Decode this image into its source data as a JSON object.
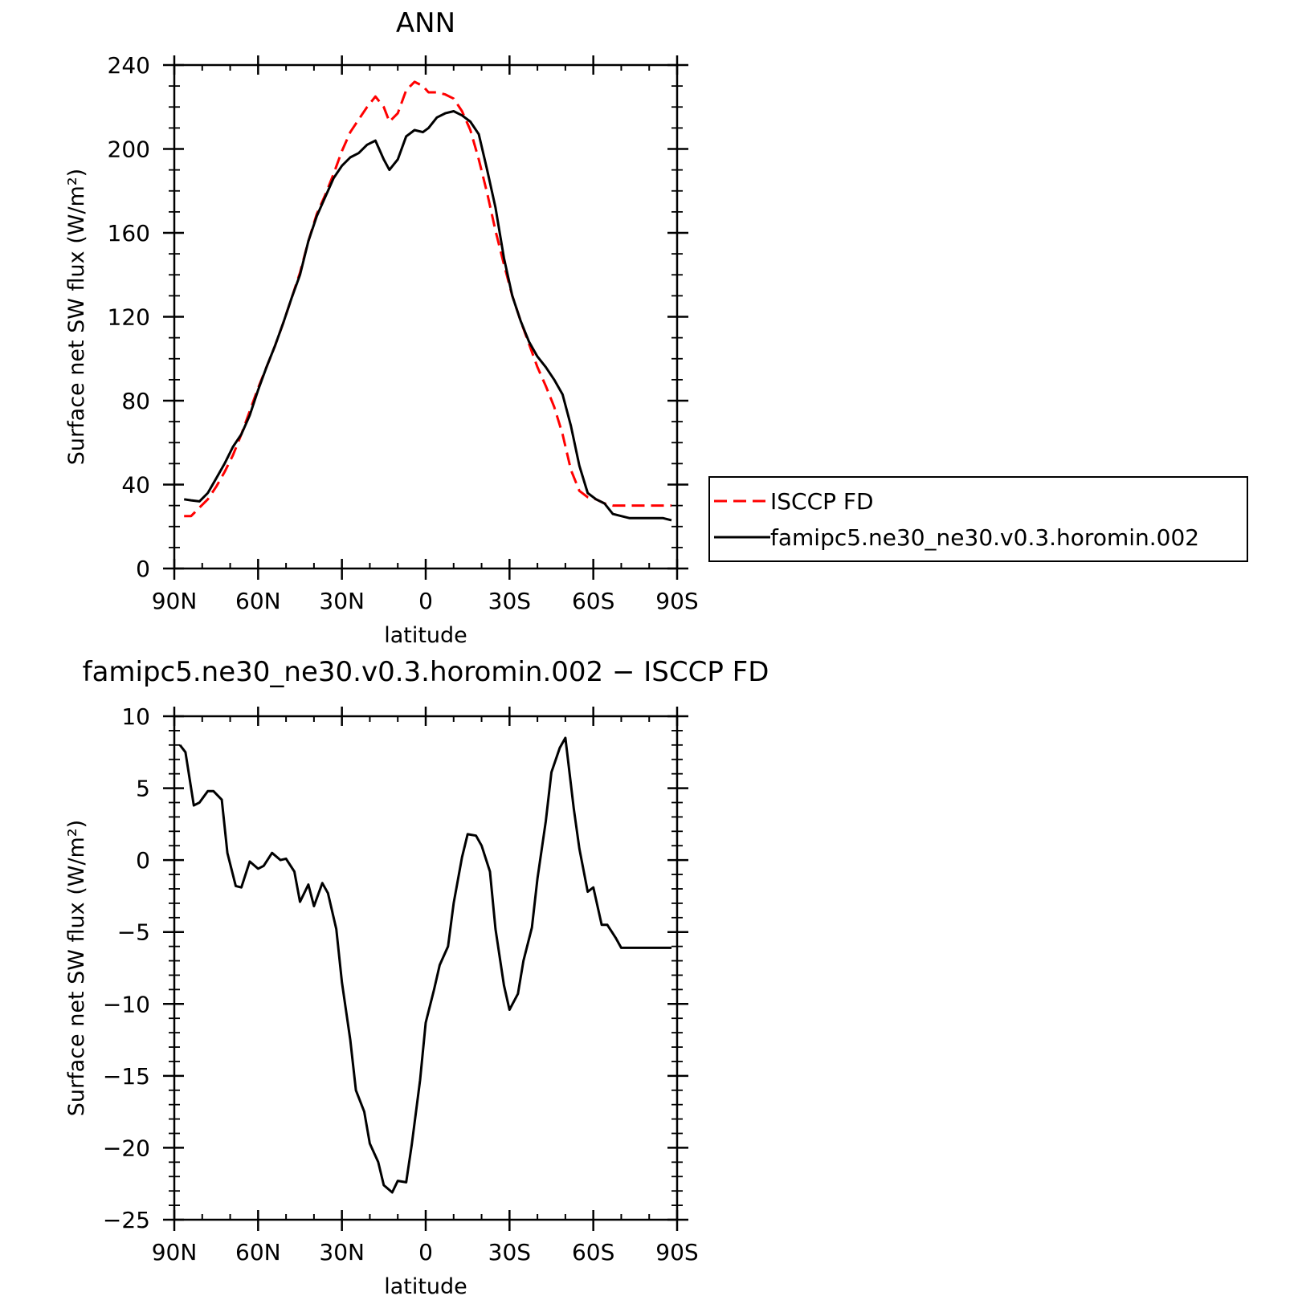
{
  "chart_data": [
    {
      "type": "line",
      "title": "ANN",
      "xlabel": "latitude",
      "ylabel": "Surface net SW flux (W/m²)",
      "xlim": [
        90,
        -90
      ],
      "ylim": [
        0,
        240
      ],
      "x_ticks": [
        90,
        60,
        30,
        0,
        -30,
        -60,
        -90
      ],
      "x_tick_labels": [
        "90N",
        "60N",
        "30N",
        "0",
        "30S",
        "60S",
        "90S"
      ],
      "y_ticks": [
        0,
        40,
        80,
        120,
        160,
        200,
        240
      ],
      "y_tick_labels": [
        "0",
        "40",
        "80",
        "120",
        "160",
        "200",
        "240"
      ],
      "legend": {
        "placement": "right"
      },
      "series": [
        {
          "name": "ISCCP FD",
          "color": "#ff0000",
          "dash": "dashed",
          "x": [
            86.5,
            84,
            81,
            78,
            75,
            72,
            69,
            66,
            63,
            60,
            57,
            54,
            51,
            48,
            45,
            42,
            39,
            36,
            33,
            30,
            27,
            24,
            21,
            18,
            15,
            13,
            10,
            7,
            4,
            1,
            -1,
            -4,
            -7,
            -10,
            -13,
            -16,
            -19,
            -22,
            -25,
            -28,
            -31,
            -34,
            -37,
            -40,
            -43,
            -46,
            -49,
            -52,
            -55,
            -58,
            -61,
            -64,
            -67,
            -70,
            -73,
            -76,
            -79,
            -82,
            -85,
            -88
          ],
          "y": [
            25,
            25,
            29,
            33,
            39,
            46,
            54,
            64,
            75,
            86,
            96,
            106,
            117,
            129,
            141,
            156,
            169,
            178,
            188,
            199,
            208,
            214,
            220,
            225,
            220,
            213,
            217,
            228,
            232,
            230,
            227,
            227,
            226,
            224,
            218,
            209,
            195,
            179,
            161,
            145,
            130,
            118,
            107,
            96,
            87,
            77,
            64,
            47,
            37,
            34,
            33,
            31,
            30,
            30,
            30,
            30,
            30,
            30,
            30,
            30
          ]
        },
        {
          "name": "famipc5.ne30_ne30.v0.3.horomin.002",
          "color": "#000000",
          "dash": "solid",
          "x": [
            86.5,
            84,
            81,
            78,
            75,
            72,
            69,
            66,
            63,
            60,
            57,
            54,
            51,
            48,
            45,
            42,
            39,
            36,
            33,
            30,
            27,
            24,
            21,
            18,
            15,
            13,
            10,
            7,
            4,
            1,
            -1,
            -4,
            -7,
            -10,
            -13,
            -16,
            -19,
            -22,
            -25,
            -28,
            -31,
            -34,
            -37,
            -40,
            -43,
            -46,
            -49,
            -52,
            -55,
            -58,
            -61,
            -64,
            -67,
            -70,
            -73,
            -76,
            -79,
            -82,
            -85,
            -88
          ],
          "y": [
            33,
            32.5,
            32,
            36,
            43,
            50,
            58,
            64,
            73,
            85,
            96,
            106,
            117,
            129,
            140,
            156,
            168,
            177,
            186,
            192,
            196,
            198,
            202,
            204,
            195,
            190,
            195,
            206,
            209,
            208,
            210,
            215,
            217,
            218,
            216,
            213,
            207,
            190,
            172,
            148,
            130,
            118,
            108,
            101,
            96,
            90,
            83,
            68,
            49,
            36,
            33,
            31,
            26,
            25,
            24,
            24,
            24,
            24,
            24,
            23
          ]
        }
      ]
    },
    {
      "type": "line",
      "title": "famipc5.ne30_ne30.v0.3.horomin.002 − ISCCP FD",
      "xlabel": "latitude",
      "ylabel": "Surface net SW flux (W/m²)",
      "xlim": [
        90,
        -90
      ],
      "ylim": [
        -25,
        10
      ],
      "x_ticks": [
        90,
        60,
        30,
        0,
        -30,
        -60,
        -90
      ],
      "x_tick_labels": [
        "90N",
        "60N",
        "30N",
        "0",
        "30S",
        "60S",
        "90S"
      ],
      "y_ticks": [
        10,
        5,
        0,
        -5,
        -10,
        -15,
        -20,
        -25
      ],
      "y_tick_labels": [
        "10",
        "5",
        "0",
        "−5",
        "−10",
        "−15",
        "−20",
        "−25"
      ],
      "series": [
        {
          "color": "#000000",
          "dash": "solid",
          "x": [
            88,
            86,
            83,
            81,
            78,
            76,
            73,
            71,
            68,
            66,
            63,
            60,
            58,
            55,
            52,
            50,
            47,
            45,
            42,
            40,
            37,
            35,
            32,
            30,
            27,
            25,
            22,
            20,
            17,
            15,
            12,
            10,
            7,
            5,
            2,
            0,
            -3,
            -5,
            -8,
            -10,
            -13,
            -15,
            -18,
            -20,
            -23,
            -25,
            -28,
            -30,
            -33,
            -35,
            -38,
            -40,
            -43,
            -45,
            -48,
            -50,
            -53,
            -55,
            -58,
            -60,
            -63,
            -65,
            -68,
            -70,
            -73,
            -75,
            -78,
            -80,
            -83,
            -85,
            -88
          ],
          "y": [
            8.0,
            7.5,
            3.8,
            4.0,
            4.8,
            4.8,
            4.2,
            0.5,
            -1.8,
            -1.9,
            -0.1,
            -0.6,
            -0.4,
            0.5,
            0.0,
            0.1,
            -0.8,
            -2.9,
            -1.7,
            -3.2,
            -1.6,
            -2.3,
            -4.8,
            -8.5,
            -12.5,
            -16.0,
            -17.5,
            -19.7,
            -21.0,
            -22.6,
            -23.1,
            -22.3,
            -22.4,
            -19.8,
            -15.3,
            -11.3,
            -9.0,
            -7.3,
            -6.0,
            -3.0,
            0.2,
            1.8,
            1.7,
            1.0,
            -0.8,
            -4.8,
            -8.7,
            -10.4,
            -9.3,
            -7.0,
            -4.7,
            -1.3,
            2.7,
            6.1,
            7.8,
            8.5,
            3.6,
            0.8,
            -2.2,
            -1.9,
            -4.5,
            -4.5,
            -5.4,
            -6.1,
            -6.1,
            -6.1,
            -6.1,
            -6.1,
            -6.1,
            -6.1,
            -6.1
          ]
        }
      ]
    }
  ]
}
